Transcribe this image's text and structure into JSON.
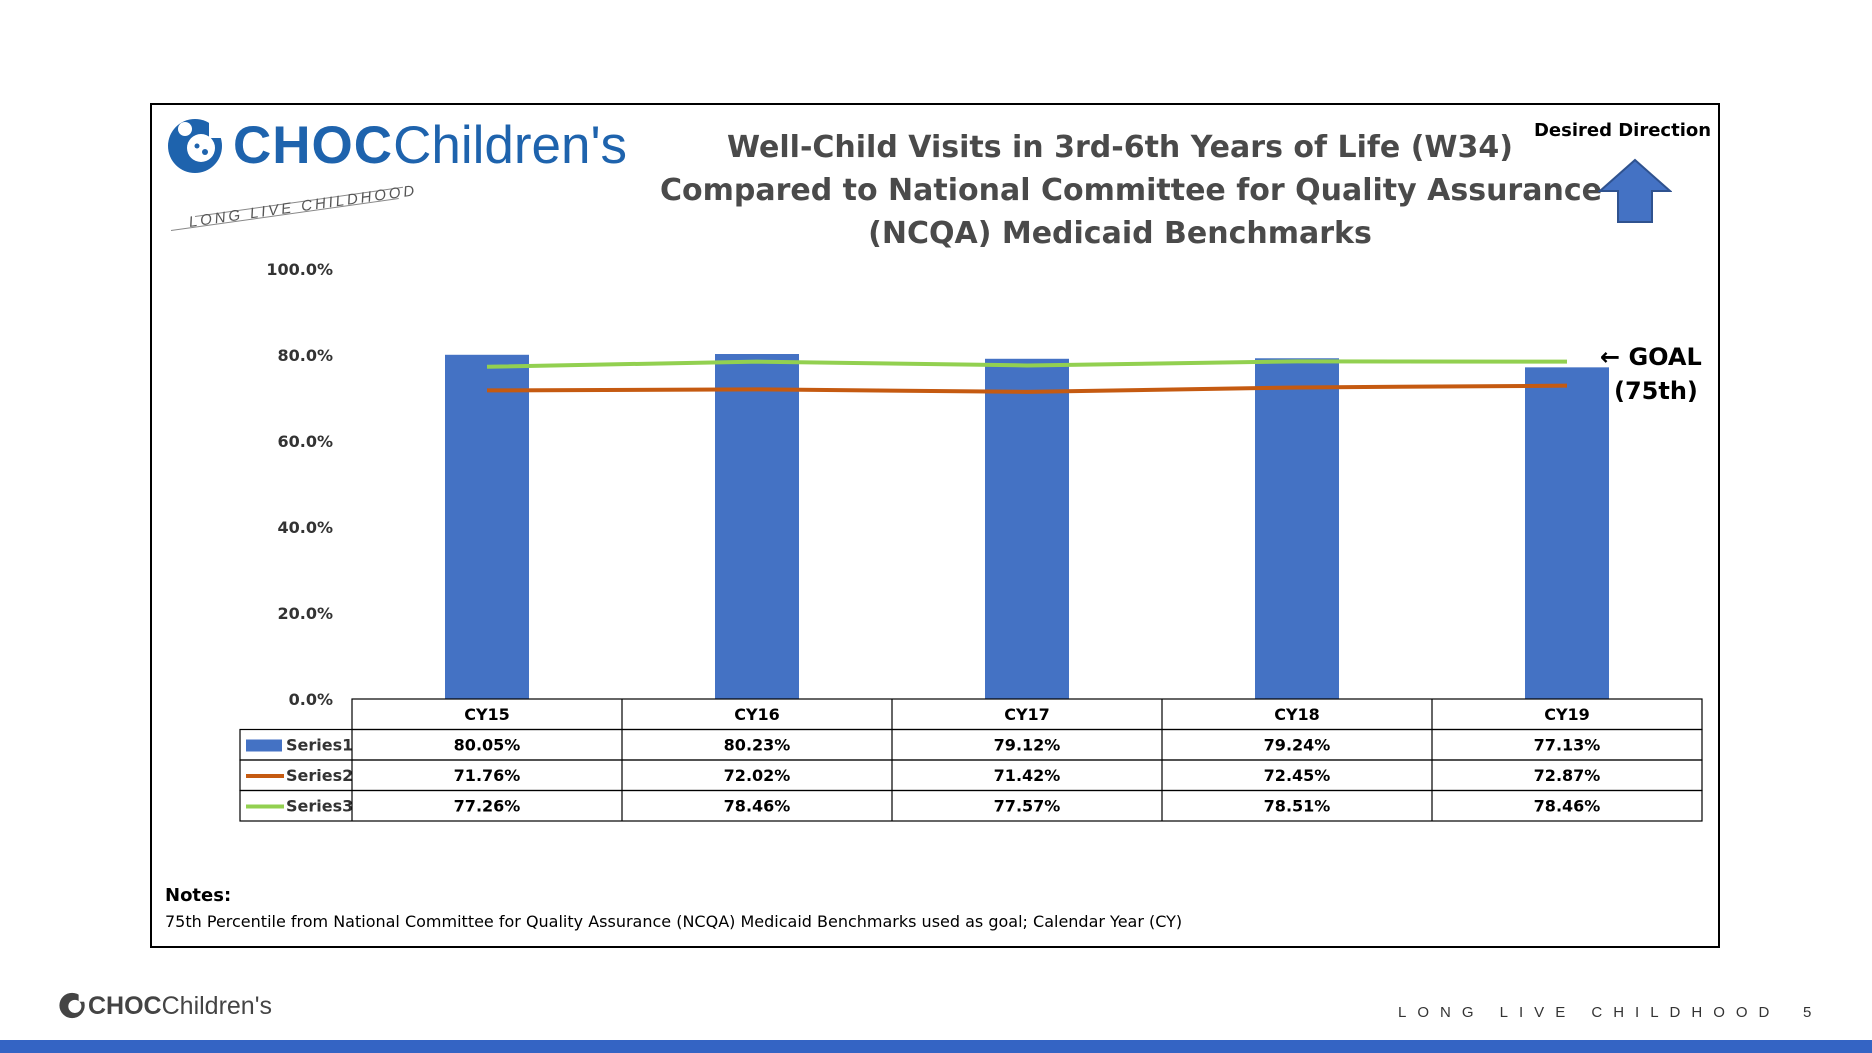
{
  "logo": {
    "brand_bold": "CHOC",
    "brand_light": "Children's",
    "tagline": "LONG LIVE CHILDHOOD"
  },
  "desired_direction": {
    "label": "Desired Direction",
    "icon": "up-arrow-icon"
  },
  "goal": {
    "line1": "← GOAL",
    "line2": "(75th)"
  },
  "notes": {
    "title": "Notes:",
    "text": "75th Percentile from National Committee for Quality Assurance (NCQA) Medicaid Benchmarks used as goal; Calendar Year (CY)"
  },
  "footer": {
    "brand_bold": "CHOC",
    "brand_light": "Children's",
    "tagline": "LONG LIVE CHILDHOOD",
    "page_number": "5"
  },
  "colors": {
    "series1": "#4472c4",
    "series2": "#c55a11",
    "series3": "#92d050",
    "brand": "#1e63ad",
    "footer_bar": "#3464c4"
  },
  "chart_data": {
    "type": "bar",
    "title_lines": [
      "Well-Child Visits in 3rd-6th Years of Life (W34)",
      "Compared to National Committee for Quality Assurance",
      "(NCQA) Medicaid Benchmarks"
    ],
    "categories": [
      "CY15",
      "CY16",
      "CY17",
      "CY18",
      "CY19"
    ],
    "ylim": [
      0,
      100
    ],
    "yticks": [
      0,
      20,
      40,
      60,
      80,
      100
    ],
    "ytick_labels": [
      "0.0%",
      "20.0%",
      "40.0%",
      "60.0%",
      "80.0%",
      "100.0%"
    ],
    "series": [
      {
        "name": "Series1",
        "kind": "bar",
        "values": [
          80.05,
          80.23,
          79.12,
          79.24,
          77.13
        ],
        "labels": [
          "80.05%",
          "80.23%",
          "79.12%",
          "79.24%",
          "77.13%"
        ]
      },
      {
        "name": "Series2",
        "kind": "line",
        "values": [
          71.76,
          72.02,
          71.42,
          72.45,
          72.87
        ],
        "labels": [
          "71.76%",
          "72.02%",
          "71.42%",
          "72.45%",
          "72.87%"
        ]
      },
      {
        "name": "Series3",
        "kind": "line",
        "values": [
          77.26,
          78.46,
          77.57,
          78.51,
          78.46
        ],
        "labels": [
          "77.26%",
          "78.46%",
          "77.57%",
          "78.51%",
          "78.46%"
        ]
      }
    ],
    "data_table": true,
    "grid": false
  }
}
